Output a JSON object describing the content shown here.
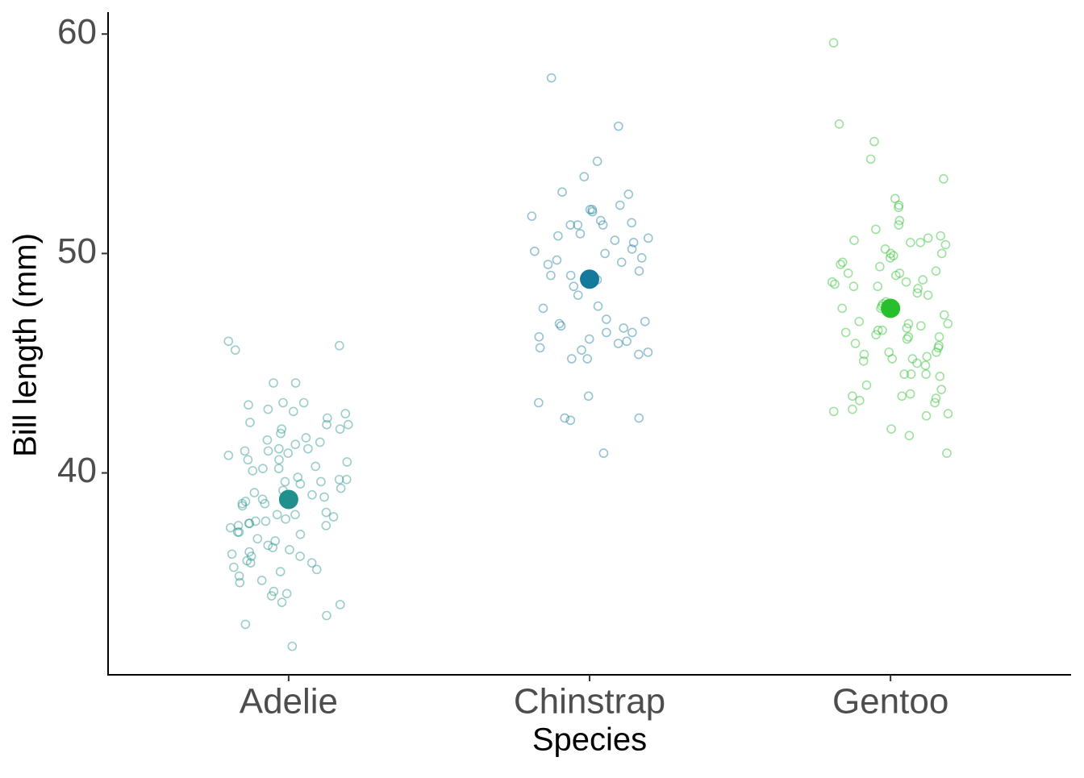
{
  "chart_data": {
    "type": "strip",
    "x_label": "Species",
    "y_label": "Bill length (mm)",
    "ylim": [
      30.8,
      61
    ],
    "yticks": [
      40,
      50,
      60
    ],
    "series": [
      {
        "name": "Adelie",
        "color": "#21908c",
        "mean": 38.79,
        "error": 0.2,
        "values": [
          46.0,
          45.8,
          45.6,
          44.1,
          44.1,
          43.2,
          43.2,
          43.1,
          42.9,
          42.8,
          42.7,
          42.5,
          42.3,
          42.2,
          42.2,
          42.0,
          42.0,
          41.8,
          41.6,
          41.5,
          41.4,
          41.3,
          41.1,
          41.1,
          41.0,
          41.0,
          40.9,
          40.8,
          40.6,
          40.6,
          40.5,
          40.3,
          40.2,
          40.2,
          40.1,
          39.8,
          39.7,
          39.7,
          39.6,
          39.6,
          39.5,
          39.3,
          39.2,
          39.1,
          39.0,
          38.9,
          38.8,
          38.8,
          38.7,
          38.6,
          38.6,
          38.5,
          38.2,
          38.1,
          38.1,
          38.0,
          37.9,
          37.8,
          37.8,
          37.7,
          37.7,
          37.6,
          37.6,
          37.5,
          37.3,
          37.3,
          37.2,
          37.0,
          36.9,
          36.7,
          36.6,
          36.5,
          36.4,
          36.3,
          36.2,
          36.2,
          36.0,
          35.9,
          35.9,
          35.7,
          35.6,
          35.5,
          35.3,
          35.1,
          35.0,
          34.6,
          34.5,
          34.4,
          34.1,
          34.0,
          33.5,
          33.1,
          32.1
        ]
      },
      {
        "name": "Chinstrap",
        "color": "#15799c",
        "mean": 48.83,
        "error": 0.4,
        "values": [
          58.0,
          55.8,
          54.2,
          53.5,
          52.8,
          52.7,
          52.2,
          52.0,
          51.9,
          52.0,
          51.7,
          51.5,
          51.3,
          51.3,
          51.4,
          51.3,
          50.9,
          50.8,
          50.7,
          50.6,
          50.5,
          50.2,
          50.1,
          50.0,
          49.8,
          49.7,
          49.6,
          49.5,
          49.2,
          49.0,
          49.0,
          48.8,
          48.5,
          48.1,
          47.6,
          47.5,
          47.0,
          46.9,
          46.8,
          46.7,
          46.6,
          46.4,
          46.4,
          46.2,
          46.1,
          46.0,
          45.9,
          45.7,
          45.6,
          45.5,
          45.4,
          45.2,
          45.2,
          43.5,
          43.2,
          42.5,
          42.5,
          42.4,
          40.9
        ]
      },
      {
        "name": "Gentoo",
        "color": "#27bf2b",
        "mean": 47.5,
        "error": 0.27,
        "values": [
          59.6,
          55.9,
          55.1,
          54.3,
          53.4,
          52.5,
          52.2,
          52.1,
          51.5,
          51.3,
          51.1,
          50.8,
          50.7,
          50.6,
          50.5,
          50.5,
          50.4,
          50.2,
          50.0,
          50.0,
          49.9,
          49.8,
          49.6,
          49.5,
          49.4,
          49.2,
          49.1,
          49.1,
          49.0,
          48.8,
          48.7,
          48.7,
          48.6,
          48.5,
          48.5,
          48.4,
          48.2,
          48.1,
          47.8,
          47.7,
          47.6,
          47.5,
          47.5,
          47.4,
          47.3,
          47.2,
          46.9,
          46.8,
          46.8,
          46.7,
          46.6,
          46.5,
          46.5,
          46.4,
          46.3,
          46.2,
          46.2,
          46.1,
          45.9,
          45.8,
          45.7,
          45.5,
          45.5,
          45.4,
          45.3,
          45.2,
          45.2,
          45.1,
          45.0,
          44.9,
          44.5,
          44.5,
          44.5,
          44.4,
          44.0,
          43.8,
          43.6,
          43.5,
          43.5,
          43.4,
          43.3,
          43.2,
          42.9,
          42.8,
          42.7,
          42.6,
          42.0,
          41.7,
          40.9
        ]
      }
    ]
  }
}
